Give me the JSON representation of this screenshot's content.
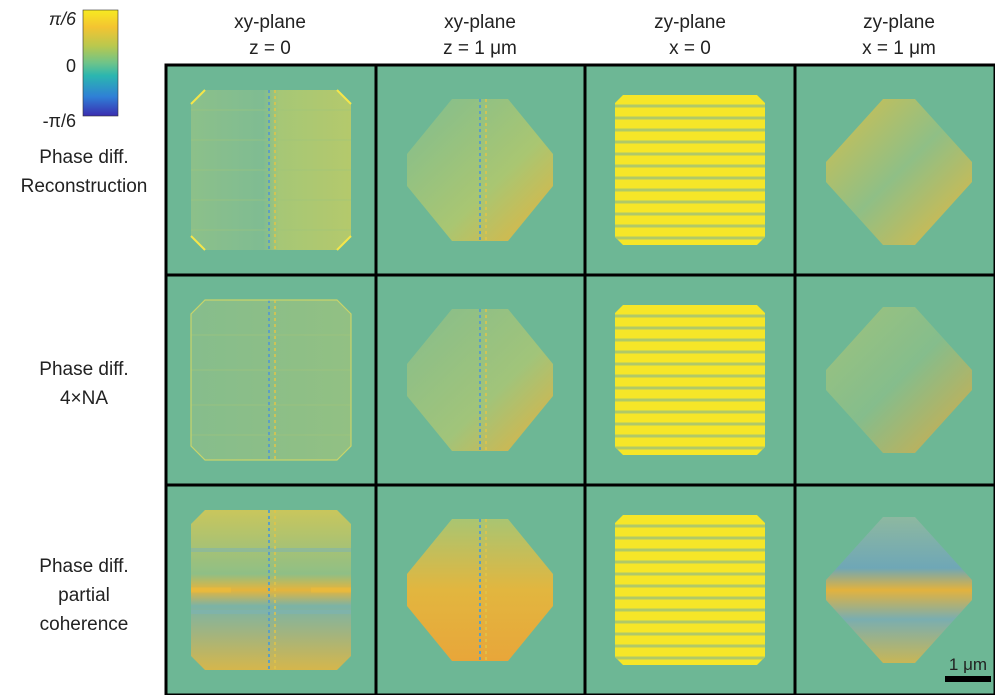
{
  "colorbar": {
    "max_label": "π/6",
    "mid_label": "0",
    "min_label": "-π/6",
    "colors": [
      "#3a2db0",
      "#2f7fd6",
      "#2bb6b0",
      "#6ec48a",
      "#b9c84e",
      "#f4c431",
      "#f7ea21"
    ]
  },
  "columns": [
    {
      "line1": "xy-plane",
      "line2": "z = 0"
    },
    {
      "line1": "xy-plane",
      "line2": "z = 1 μm"
    },
    {
      "line1": "zy-plane",
      "line2": "x = 0"
    },
    {
      "line1": "zy-plane",
      "line2": "x = 1 μm"
    }
  ],
  "rows": [
    {
      "line1": "Phase diff.",
      "line2": "Reconstruction",
      "line3": ""
    },
    {
      "line1": "Phase diff.",
      "line2": "4×NA",
      "line3": ""
    },
    {
      "line1": "Phase diff.",
      "line2": "partial",
      "line3": "coherence"
    }
  ],
  "scalebar_label": "1 μm",
  "colors": {
    "background_phase": "#6db795",
    "grid_border": "#000000",
    "yellow": "#f6e628",
    "orange": "#e8b23c",
    "blue": "#4f8fd2"
  },
  "panel_shapes": [
    "square",
    "diamond",
    "square",
    "diamond"
  ]
}
